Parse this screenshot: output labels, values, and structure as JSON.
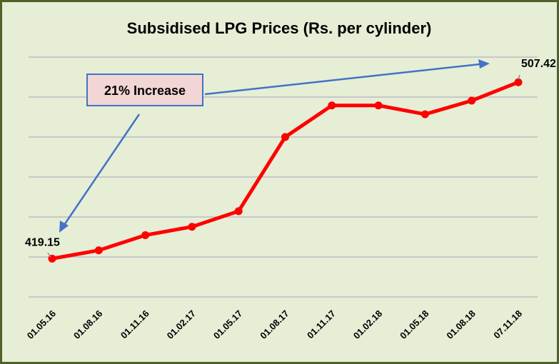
{
  "chart_data": {
    "type": "line",
    "title": "Subsidised LPG Prices (Rs. per cylinder)",
    "xlabel": "",
    "ylabel": "",
    "categories": [
      "01.05.16",
      "01.08.16",
      "01.11.16",
      "01.02.17",
      "01.05.17",
      "01.08.17",
      "01.11.17",
      "01.02.18",
      "01.05.18",
      "01.08.18",
      "07.11.18"
    ],
    "series": [
      {
        "values": [
          419.15,
          423.3,
          430.9,
          435.1,
          442.9,
          480.0,
          495.8,
          495.8,
          491.4,
          498.2,
          507.42
        ]
      }
    ],
    "data_labels": [
      {
        "index": 0,
        "text": "419.15"
      },
      {
        "index": 10,
        "text": "507.42"
      }
    ],
    "annotation": "21% Increase",
    "ylim": [
      400,
      520
    ],
    "y_gridlines": [
      400,
      420,
      440,
      460,
      480,
      500,
      520
    ],
    "y_tick_labels_shown": false,
    "grid": true,
    "legend": "none",
    "colors": {
      "line": "#ff0000",
      "background": "#e6eed6",
      "border": "#4f6228",
      "gridline": "#c8c8c8",
      "arrow": "#4472c4",
      "annotation_fill": "#f2d5d5"
    }
  }
}
